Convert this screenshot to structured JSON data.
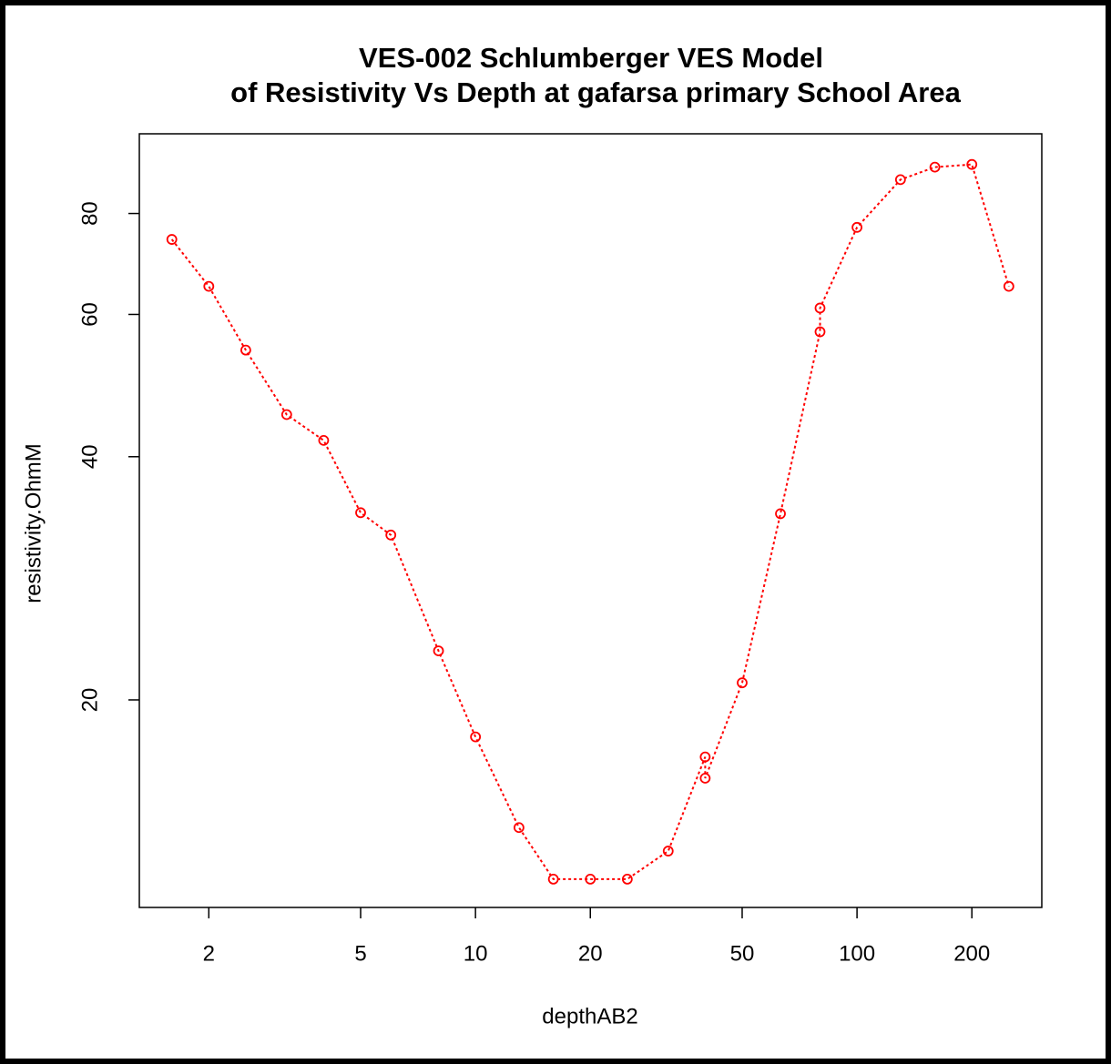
{
  "chart_data": {
    "type": "line",
    "title": [
      "VES-002 Schlumberger VES Model",
      "of Resistivity Vs Depth at gafarsa primary School Area"
    ],
    "x_label": "depthAB2",
    "y_label": "resistivity.OhmM",
    "x": [
      1.6,
      2,
      2.5,
      3.2,
      4,
      5,
      6,
      8,
      10,
      13,
      16,
      20,
      25,
      32,
      40,
      40,
      50,
      63,
      80,
      80,
      100,
      130,
      160,
      200,
      250
    ],
    "values": [
      74.3,
      65,
      54.2,
      45.1,
      41.9,
      34.1,
      32,
      23,
      18,
      13.9,
      12,
      12,
      12,
      13,
      17,
      16,
      21,
      34,
      57.1,
      61.1,
      76.9,
      88.1,
      91.3,
      92,
      65
    ],
    "color": "#ff0000",
    "xlog": true,
    "ylog": true,
    "xlim": [
      1.315,
      305
    ],
    "ylim": [
      11.07,
      100.4
    ],
    "xticks": [
      2,
      5,
      10,
      20,
      50,
      100,
      200
    ],
    "yticks": [
      20,
      40,
      60,
      80
    ]
  }
}
